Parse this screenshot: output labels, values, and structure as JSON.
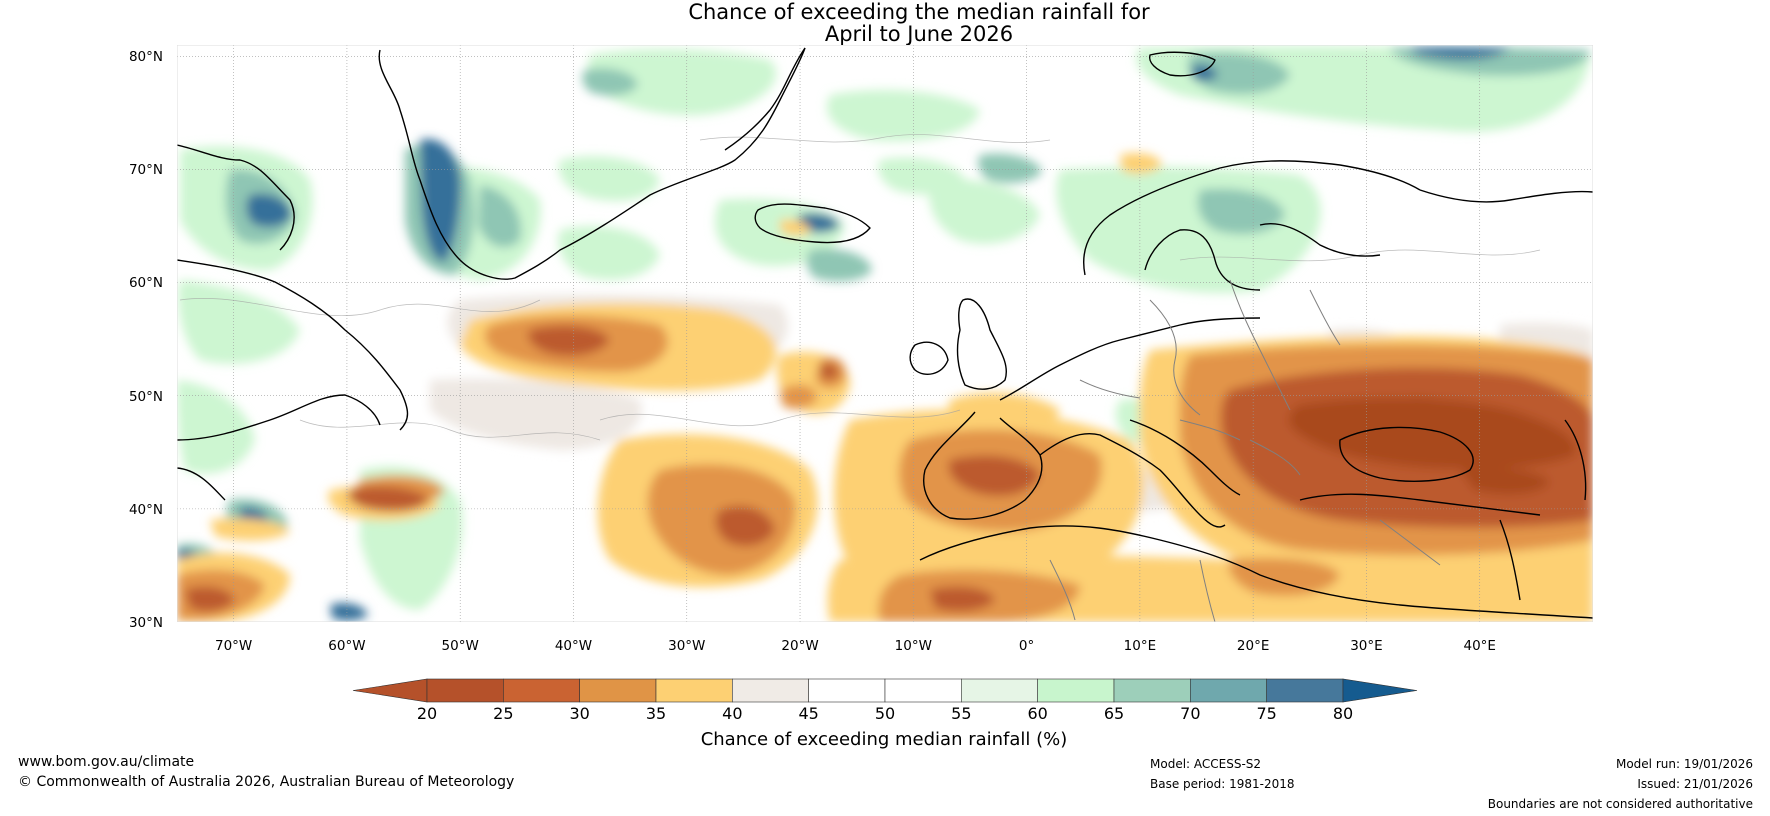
{
  "title": {
    "line1": "Chance of exceeding the median rainfall for",
    "line2": "April to June 2026"
  },
  "map": {
    "extent": {
      "lon_min": -75,
      "lon_max": 50,
      "lat_min": 30,
      "lat_max": 81
    },
    "lat_ticks": [
      {
        "value": 80,
        "label": "80°N"
      },
      {
        "value": 70,
        "label": "70°N"
      },
      {
        "value": 60,
        "label": "60°N"
      },
      {
        "value": 50,
        "label": "50°N"
      },
      {
        "value": 40,
        "label": "40°N"
      },
      {
        "value": 30,
        "label": "30°N"
      }
    ],
    "lon_ticks": [
      {
        "value": -70,
        "label": "70°W"
      },
      {
        "value": -60,
        "label": "60°W"
      },
      {
        "value": -50,
        "label": "50°W"
      },
      {
        "value": -40,
        "label": "40°W"
      },
      {
        "value": -30,
        "label": "30°W"
      },
      {
        "value": -20,
        "label": "20°W"
      },
      {
        "value": -10,
        "label": "10°W"
      },
      {
        "value": 0,
        "label": "0°"
      },
      {
        "value": 10,
        "label": "10°E"
      },
      {
        "value": 20,
        "label": "20°E"
      },
      {
        "value": 30,
        "label": "30°E"
      },
      {
        "value": 40,
        "label": "40°E"
      }
    ]
  },
  "colorbar": {
    "label": "Chance of exceeding median rainfall (%)",
    "ticks": [
      20,
      25,
      30,
      35,
      40,
      45,
      50,
      55,
      60,
      65,
      70,
      75,
      80
    ],
    "colors": [
      "#b5512a",
      "#b5512a",
      "#ca6332",
      "#e09446",
      "#fdd073",
      "#f0ebe6",
      "#ffffff",
      "#ffffff",
      "#e6f5e6",
      "#c8f5cd",
      "#9dcfba",
      "#6fa8ad",
      "#46789b",
      "#155b8f"
    ]
  },
  "footer": {
    "url": "www.bom.gov.au/climate",
    "copyright": "© Commonwealth of Australia 2026, Australian Bureau of Meteorology",
    "model": "Model: ACCESS-S2",
    "base_period": "Base period: 1981-2018",
    "model_run": "Model run: 19/01/2026",
    "issued": "Issued: 21/01/2026",
    "disclaimer": "Boundaries are not considered authoritative"
  }
}
